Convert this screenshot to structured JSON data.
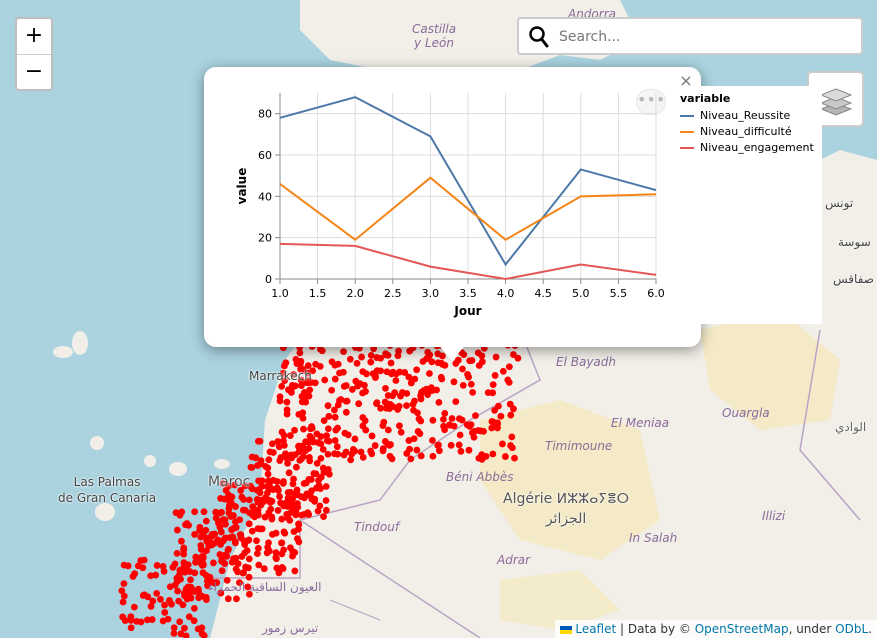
{
  "map": {
    "zoom_in_label": "+",
    "zoom_out_label": "−",
    "labels": [
      {
        "text": "Castilla\ny León",
        "kind": "region"
      },
      {
        "text": "Andorra",
        "kind": "region"
      },
      {
        "text": "El Bayadh",
        "kind": "region"
      },
      {
        "text": "El Meniaa",
        "kind": "region"
      },
      {
        "text": "Ouargla",
        "kind": "region"
      },
      {
        "text": "Timimoune",
        "kind": "region"
      },
      {
        "text": "Béni Abbès",
        "kind": "region"
      },
      {
        "text": "Tindouf",
        "kind": "region"
      },
      {
        "text": "Illizi",
        "kind": "region"
      },
      {
        "text": "In Salah",
        "kind": "region"
      },
      {
        "text": "Adrar",
        "kind": "region"
      },
      {
        "text": "Las Palmas\nde Gran Canaria",
        "kind": "city"
      },
      {
        "text": "Marrakech",
        "kind": "city"
      },
      {
        "text": "Maroc",
        "kind": "country"
      },
      {
        "text": "Algérie ⵍⵣⵣⴰⵢⴻⵔ\nالجزائر",
        "kind": "country"
      },
      {
        "text": "تونس",
        "kind": "city"
      },
      {
        "text": "سوسة",
        "kind": "city"
      },
      {
        "text": "صفاقس",
        "kind": "city"
      },
      {
        "text": "الوادي",
        "kind": "city"
      },
      {
        "text": "العيون الساقية الحمراء",
        "kind": "region"
      },
      {
        "text": "تيرس زمور",
        "kind": "region"
      }
    ]
  },
  "search": {
    "placeholder": "Search..."
  },
  "layers_icon": "layers-icon",
  "popup": {
    "close_label": "×",
    "menu_label": "•••"
  },
  "chart_data": {
    "type": "line",
    "xlabel": "Jour",
    "ylabel": "value",
    "x": [
      1,
      2,
      3,
      4,
      5,
      6
    ],
    "xlim": [
      1,
      6
    ],
    "ylim": [
      0,
      90
    ],
    "xticks": [
      "1.0",
      "1.5",
      "2.0",
      "2.5",
      "3.0",
      "3.5",
      "4.0",
      "4.5",
      "5.0",
      "5.5",
      "6.0"
    ],
    "yticks": [
      "0",
      "20",
      "40",
      "60",
      "80"
    ],
    "legend_title": "variable",
    "legend_position": "right",
    "grid": true,
    "series": [
      {
        "name": "Niveau_Reussite",
        "color": "#4c78a8",
        "values": [
          78,
          88,
          69,
          7,
          53,
          43
        ]
      },
      {
        "name": "Niveau_difficulté",
        "color": "#f58518",
        "values": [
          46,
          19,
          49,
          19,
          40,
          41
        ]
      },
      {
        "name": "Niveau_engagement",
        "color": "#e45756",
        "values": [
          17,
          16,
          6,
          0,
          7,
          2
        ]
      }
    ]
  },
  "attribution": {
    "leaflet": "Leaflet",
    "sep": "| Data by ©",
    "osm": "OpenStreetMap",
    "under": ", under",
    "odbl": "ODbL",
    "end": "."
  }
}
